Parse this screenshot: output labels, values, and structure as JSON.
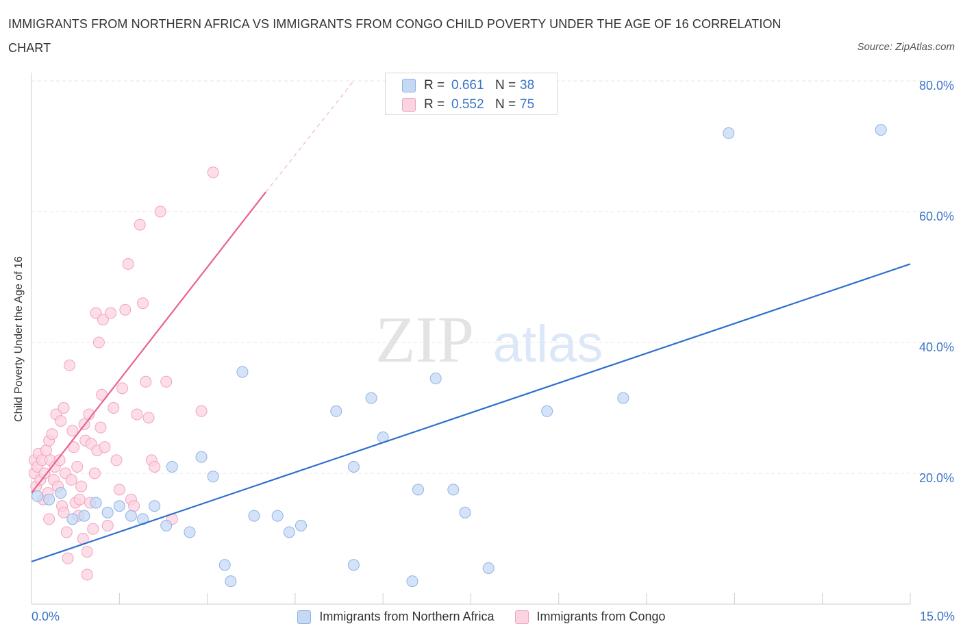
{
  "title": "IMMIGRANTS FROM NORTHERN AFRICA VS IMMIGRANTS FROM CONGO CHILD POVERTY UNDER THE AGE OF 16 CORRELATION CHART",
  "source": "Source: ZipAtlas.com",
  "watermark": {
    "zip": "ZIP",
    "atlas": "atlas"
  },
  "legend_top": {
    "rows": [
      {
        "r_label": "R =",
        "r_value": "0.661",
        "n_label": "N =",
        "n_value": "38"
      },
      {
        "r_label": "R =",
        "r_value": "0.552",
        "n_label": "N =",
        "n_value": "75"
      }
    ]
  },
  "legend_bottom": {
    "series1": "Immigrants from Northern Africa",
    "series2": "Immigrants from Congo"
  },
  "x_tick_labels": {
    "min": "0.0%",
    "max": "15.0%"
  },
  "colors": {
    "blue_fill": "#c5d9f5",
    "blue_stroke": "#8fb2e6",
    "blue_line": "#2f6fce",
    "pink_fill": "#fcd3e0",
    "pink_stroke": "#f0a3bd",
    "pink_line": "#e8628b",
    "tick_text": "#3b74c6",
    "grid": "#e5e5e5"
  },
  "chart_data": {
    "type": "scatter",
    "title": "IMMIGRANTS FROM NORTHERN AFRICA VS IMMIGRANTS FROM CONGO CHILD POVERTY UNDER THE AGE OF 16 CORRELATION CHART",
    "xlabel": "",
    "ylabel": "Child Poverty Under the Age of 16",
    "xlim": [
      0,
      15
    ],
    "ylim": [
      0,
      80
    ],
    "y_ticks": [
      20,
      40,
      60,
      80
    ],
    "y_tick_labels": [
      "20.0%",
      "40.0%",
      "60.0%",
      "80.0%"
    ],
    "legend_position": "top-center",
    "series": [
      {
        "name": "Immigrants from Northern Africa",
        "R": 0.661,
        "N": 38,
        "trend": {
          "x": [
            0,
            15
          ],
          "y": [
            6.5,
            52
          ]
        },
        "points": [
          [
            0.1,
            16.5
          ],
          [
            0.3,
            16
          ],
          [
            0.5,
            17
          ],
          [
            0.7,
            13
          ],
          [
            0.9,
            13.5
          ],
          [
            1.1,
            15.5
          ],
          [
            1.3,
            14
          ],
          [
            1.5,
            15
          ],
          [
            1.7,
            13.5
          ],
          [
            1.9,
            13
          ],
          [
            2.1,
            15
          ],
          [
            2.3,
            12
          ],
          [
            2.4,
            21
          ],
          [
            2.7,
            11
          ],
          [
            2.9,
            22.5
          ],
          [
            3.1,
            19.5
          ],
          [
            3.3,
            6
          ],
          [
            3.4,
            3.5
          ],
          [
            3.6,
            35.5
          ],
          [
            3.8,
            13.5
          ],
          [
            4.2,
            13.5
          ],
          [
            4.4,
            11
          ],
          [
            4.6,
            12
          ],
          [
            5.2,
            29.5
          ],
          [
            5.5,
            21
          ],
          [
            5.5,
            6
          ],
          [
            5.8,
            31.5
          ],
          [
            6.0,
            25.5
          ],
          [
            6.5,
            3.5
          ],
          [
            6.6,
            17.5
          ],
          [
            6.9,
            34.5
          ],
          [
            7.2,
            17.5
          ],
          [
            7.4,
            14
          ],
          [
            7.8,
            5.5
          ],
          [
            8.8,
            29.5
          ],
          [
            10.1,
            31.5
          ],
          [
            11.9,
            72
          ],
          [
            14.5,
            72.5
          ]
        ]
      },
      {
        "name": "Immigrants from Congo",
        "R": 0.552,
        "N": 75,
        "trend": {
          "x": [
            0,
            4.0
          ],
          "y": [
            17,
            63
          ]
        },
        "trend_dashed": {
          "x": [
            4.0,
            5.5
          ],
          "y": [
            63,
            80
          ]
        },
        "points": [
          [
            0.05,
            20
          ],
          [
            0.05,
            22
          ],
          [
            0.08,
            18
          ],
          [
            0.1,
            21
          ],
          [
            0.12,
            23
          ],
          [
            0.15,
            19
          ],
          [
            0.18,
            22
          ],
          [
            0.2,
            16
          ],
          [
            0.22,
            20
          ],
          [
            0.25,
            23.5
          ],
          [
            0.28,
            17
          ],
          [
            0.3,
            25
          ],
          [
            0.32,
            22
          ],
          [
            0.35,
            26
          ],
          [
            0.38,
            19
          ],
          [
            0.4,
            21
          ],
          [
            0.42,
            29
          ],
          [
            0.45,
            18
          ],
          [
            0.48,
            22
          ],
          [
            0.5,
            28
          ],
          [
            0.52,
            15
          ],
          [
            0.55,
            14
          ],
          [
            0.58,
            20
          ],
          [
            0.6,
            11
          ],
          [
            0.62,
            7
          ],
          [
            0.65,
            36.5
          ],
          [
            0.68,
            19
          ],
          [
            0.7,
            26.5
          ],
          [
            0.72,
            24
          ],
          [
            0.75,
            15.5
          ],
          [
            0.78,
            21
          ],
          [
            0.8,
            13.5
          ],
          [
            0.82,
            16
          ],
          [
            0.85,
            18
          ],
          [
            0.88,
            10
          ],
          [
            0.9,
            27.5
          ],
          [
            0.92,
            25
          ],
          [
            0.95,
            8
          ],
          [
            0.98,
            29
          ],
          [
            1.0,
            15.5
          ],
          [
            1.02,
            24.5
          ],
          [
            1.05,
            11.5
          ],
          [
            1.08,
            20
          ],
          [
            1.1,
            44.5
          ],
          [
            1.12,
            23.5
          ],
          [
            1.15,
            40
          ],
          [
            1.18,
            27
          ],
          [
            1.2,
            32
          ],
          [
            1.22,
            43.5
          ],
          [
            1.25,
            24
          ],
          [
            1.3,
            12
          ],
          [
            1.35,
            44.5
          ],
          [
            1.4,
            30
          ],
          [
            1.45,
            22
          ],
          [
            1.5,
            17.5
          ],
          [
            1.55,
            33
          ],
          [
            1.6,
            45
          ],
          [
            1.65,
            52
          ],
          [
            1.7,
            16
          ],
          [
            1.75,
            15
          ],
          [
            1.8,
            29
          ],
          [
            1.85,
            58
          ],
          [
            1.9,
            46
          ],
          [
            1.95,
            34
          ],
          [
            2.0,
            28.5
          ],
          [
            2.05,
            22
          ],
          [
            2.1,
            21
          ],
          [
            2.2,
            60
          ],
          [
            2.3,
            34
          ],
          [
            0.95,
            4.5
          ],
          [
            2.4,
            13
          ],
          [
            2.9,
            29.5
          ],
          [
            3.1,
            66
          ],
          [
            0.3,
            13
          ],
          [
            0.55,
            30
          ]
        ]
      }
    ]
  }
}
